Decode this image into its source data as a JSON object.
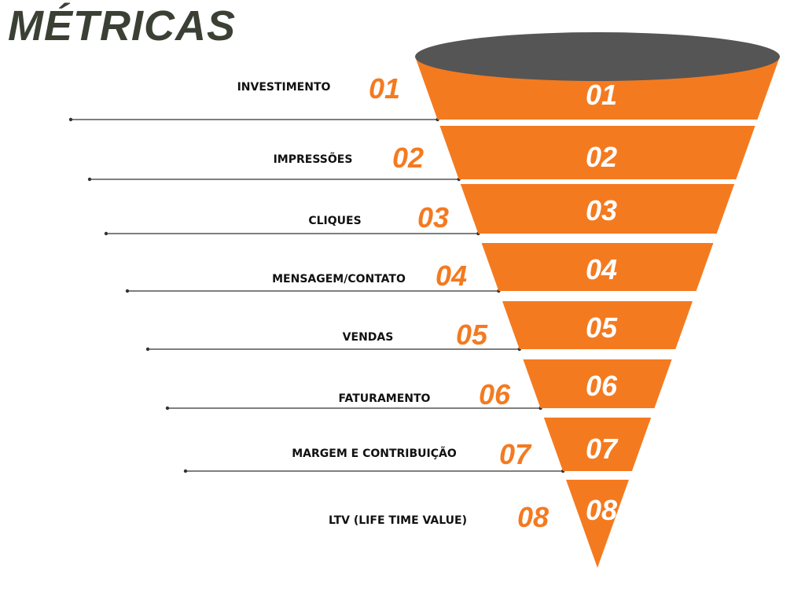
{
  "title": "MÉTRICAS",
  "colors": {
    "title": "#3a4034",
    "accent": "#f47a20",
    "funnel_fill": "#f47a20",
    "funnel_top": "#555555",
    "segment_number": "#ffffff",
    "label_text": "#111111",
    "leader_line": "#333333"
  },
  "stages": [
    {
      "number": "01",
      "label": "INVESTIMENTO"
    },
    {
      "number": "02",
      "label": "IMPRESSÕES"
    },
    {
      "number": "03",
      "label": "CLIQUES"
    },
    {
      "number": "04",
      "label": "MENSAGEM/CONTATO"
    },
    {
      "number": "05",
      "label": "VENDAS"
    },
    {
      "number": "06",
      "label": "FATURAMENTO"
    },
    {
      "number": "07",
      "label": "MARGEM E CONTRIBUIÇÃO"
    },
    {
      "number": "08",
      "label": "LTV (LIFE TIME VALUE)"
    }
  ]
}
